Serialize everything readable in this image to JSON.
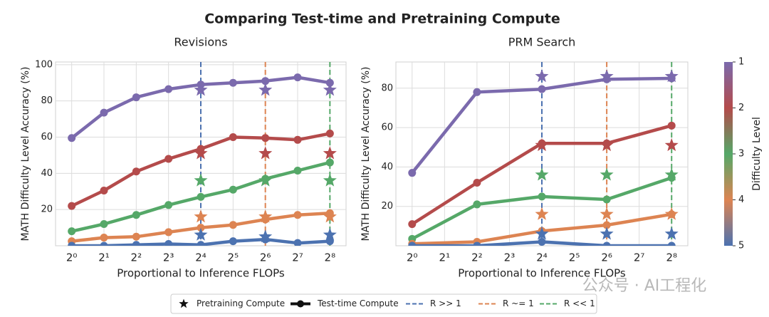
{
  "title": "Comparing Test-time and Pretraining Compute",
  "chart_data": [
    {
      "type": "line",
      "title": "Revisions",
      "xlabel": "Proportional to Inference FLOPs",
      "ylabel": "MATH Difficulty Level Accuracy (%)",
      "xscale": "log2",
      "xlim": [
        0.707,
        362
      ],
      "xticks": [
        {
          "value": 1,
          "label": "2⁰"
        },
        {
          "value": 2,
          "label": "2¹"
        },
        {
          "value": 4,
          "label": "2²"
        },
        {
          "value": 8,
          "label": "2³"
        },
        {
          "value": 16,
          "label": "2⁴"
        },
        {
          "value": 32,
          "label": "2⁵"
        },
        {
          "value": 64,
          "label": "2⁶"
        },
        {
          "value": 128,
          "label": "2⁷"
        },
        {
          "value": 256,
          "label": "2⁸"
        }
      ],
      "ylim": [
        0,
        101.5
      ],
      "yticks": [
        20,
        40,
        60,
        80,
        100
      ],
      "grid": true,
      "x": [
        1,
        2,
        4,
        8,
        16,
        32,
        64,
        128,
        256
      ],
      "series": [
        {
          "color": "#7b6aad",
          "values": [
            59.5,
            73.5,
            82,
            86.5,
            89,
            90,
            91,
            93,
            90
          ]
        },
        {
          "color": "#b44b4b",
          "values": [
            22,
            30.5,
            41,
            48,
            53.5,
            60,
            59.5,
            58.5,
            62
          ]
        },
        {
          "color": "#55a868",
          "values": [
            8,
            12,
            17,
            22.5,
            27,
            31,
            37,
            41.5,
            46
          ]
        },
        {
          "color": "#dd8452",
          "values": [
            2.5,
            4.5,
            5,
            7.5,
            10,
            11.5,
            14.5,
            17,
            18
          ]
        },
        {
          "color": "#4c72b0",
          "values": [
            0,
            0,
            0.5,
            1,
            0.5,
            2.5,
            3.5,
            1.5,
            2.5
          ]
        }
      ],
      "stars": {
        "x": [
          16,
          64,
          256
        ],
        "series": [
          {
            "color": "#7b6aad",
            "values": [
              86,
              86,
              86
            ]
          },
          {
            "color": "#b44b4b",
            "values": [
              51,
              51,
              51
            ]
          },
          {
            "color": "#55a868",
            "values": [
              36,
              36,
              36
            ]
          },
          {
            "color": "#dd8452",
            "values": [
              16,
              16,
              16
            ]
          },
          {
            "color": "#4c72b0",
            "values": [
              6,
              5,
              6
            ]
          }
        ]
      },
      "ref_lines": [
        {
          "x": 16,
          "color": "#4c72b0"
        },
        {
          "x": 64,
          "color": "#dd8452"
        },
        {
          "x": 256,
          "color": "#55a868"
        }
      ]
    },
    {
      "type": "line",
      "title": "PRM Search",
      "xlabel": "Proportional to Inference FLOPs",
      "ylabel": "MATH Difficulty Level Accuracy (%)",
      "xscale": "log2",
      "xlim": [
        0.707,
        362
      ],
      "xticks": [
        {
          "value": 1,
          "label": "2⁰"
        },
        {
          "value": 2,
          "label": "2¹"
        },
        {
          "value": 4,
          "label": "2²"
        },
        {
          "value": 8,
          "label": "2³"
        },
        {
          "value": 16,
          "label": "2⁴"
        },
        {
          "value": 32,
          "label": "2⁵"
        },
        {
          "value": 64,
          "label": "2⁶"
        },
        {
          "value": 128,
          "label": "2⁷"
        },
        {
          "value": 256,
          "label": "2⁸"
        }
      ],
      "ylim": [
        0,
        93.3
      ],
      "yticks": [
        20,
        40,
        60,
        80
      ],
      "grid": true,
      "x": [
        1,
        4,
        16,
        64,
        256
      ],
      "series": [
        {
          "color": "#7b6aad",
          "values": [
            37,
            78,
            79.5,
            84.5,
            85
          ]
        },
        {
          "color": "#b44b4b",
          "values": [
            11,
            32,
            52,
            52,
            61
          ]
        },
        {
          "color": "#55a868",
          "values": [
            3.5,
            21,
            25,
            23.5,
            34.5
          ]
        },
        {
          "color": "#dd8452",
          "values": [
            1,
            2,
            7.5,
            10.5,
            16
          ]
        },
        {
          "color": "#4c72b0",
          "values": [
            0,
            0,
            2,
            0,
            0
          ]
        }
      ],
      "stars": {
        "x": [
          16,
          64,
          256
        ],
        "series": [
          {
            "color": "#7b6aad",
            "values": [
              86,
              86,
              86
            ]
          },
          {
            "color": "#b44b4b",
            "values": [
              51,
              51,
              51
            ]
          },
          {
            "color": "#55a868",
            "values": [
              36,
              36,
              36
            ]
          },
          {
            "color": "#dd8452",
            "values": [
              16,
              16,
              16
            ]
          },
          {
            "color": "#4c72b0",
            "values": [
              6,
              6,
              6
            ]
          }
        ]
      },
      "ref_lines": [
        {
          "x": 16,
          "color": "#4c72b0"
        },
        {
          "x": 64,
          "color": "#dd8452"
        },
        {
          "x": 256,
          "color": "#55a868"
        }
      ]
    }
  ],
  "colorbar": {
    "label": "Difficulty Level",
    "lim": [
      1,
      5
    ],
    "ticks": [
      1,
      2,
      3,
      4,
      5
    ],
    "colors": [
      "#7b6aad",
      "#b44b4b",
      "#55a868",
      "#dd8452",
      "#4c72b0"
    ]
  },
  "legend": {
    "items": [
      {
        "label": "Pretraining Compute",
        "marker": "star",
        "color": "#111111"
      },
      {
        "label": "Test-time Compute",
        "marker": "line",
        "color": "#111111"
      },
      {
        "label": "R >> 1",
        "marker": "dash",
        "color": "#4c72b0"
      },
      {
        "label": "R ~= 1",
        "marker": "dash",
        "color": "#dd8452"
      },
      {
        "label": "R << 1",
        "marker": "dash",
        "color": "#55a868"
      }
    ]
  },
  "watermark": "公众号 · AI工程化"
}
